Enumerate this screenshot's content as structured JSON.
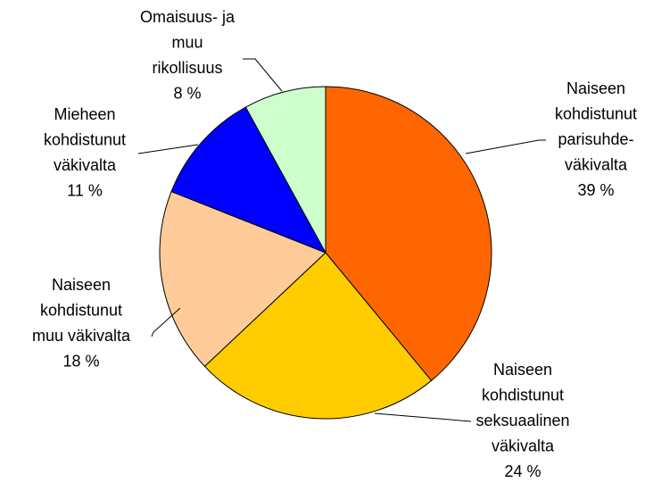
{
  "chart_data": {
    "type": "pie",
    "categories": [
      [
        "Naiseen",
        "kohdistunut",
        "parisuhde-",
        "väkivalta"
      ],
      [
        "Naiseen",
        "kohdistunut",
        "seksuaalinen",
        "väkivalta"
      ],
      [
        "Naiseen",
        "kohdistunut",
        "muu väkivalta"
      ],
      [
        "Mieheen",
        "kohdistunut",
        "väkivalta"
      ],
      [
        "Omaisuus- ja",
        "muu",
        "rikollisuus"
      ]
    ],
    "values": [
      39,
      24,
      18,
      11,
      8
    ],
    "value_labels": [
      "39 %",
      "24 %",
      "18 %",
      "11 %",
      "8 %"
    ],
    "colors": [
      "#FF6600",
      "#FFCC00",
      "#FFCC99",
      "#0000FF",
      "#CCFFCC"
    ]
  }
}
